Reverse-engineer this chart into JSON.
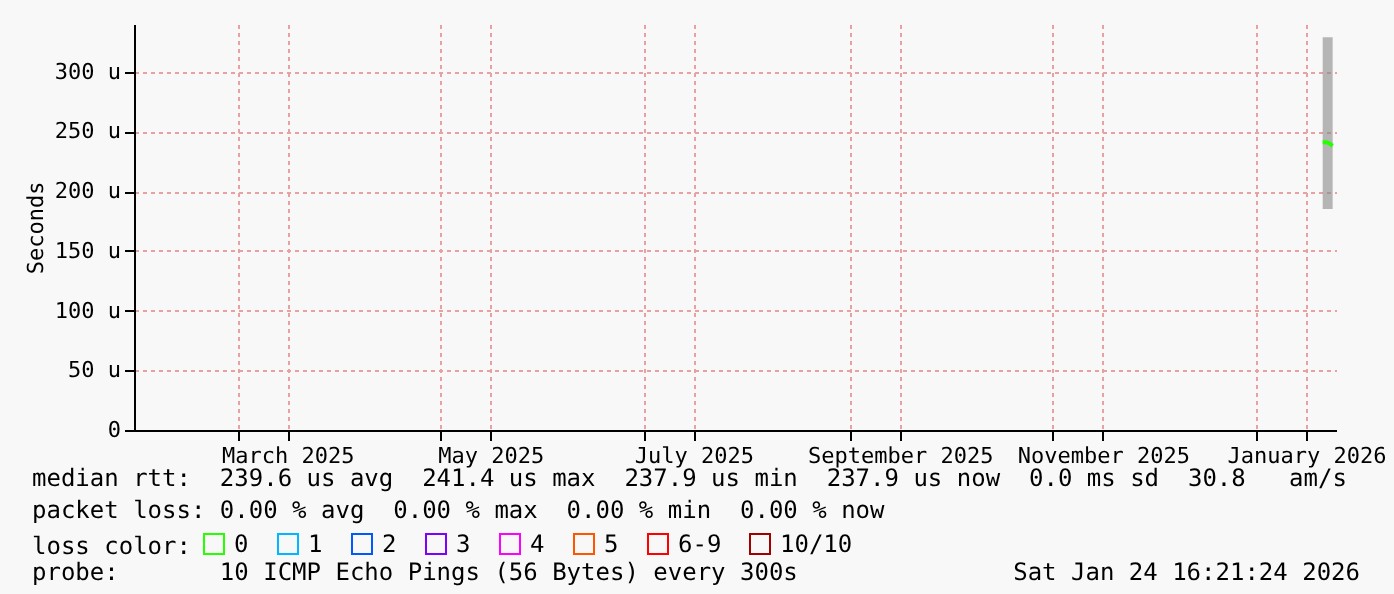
{
  "chart_data": {
    "type": "line",
    "ylabel": "Seconds",
    "xlim": [
      "2025-01-29",
      "2026-01-25"
    ],
    "xticks": [
      {
        "value": "2025-03-01",
        "label": null
      },
      {
        "value": "2025-03-16",
        "label": "March 2025"
      },
      {
        "value": "2025-05-01",
        "label": null
      },
      {
        "value": "2025-05-16",
        "label": "May 2025"
      },
      {
        "value": "2025-07-01",
        "label": null
      },
      {
        "value": "2025-07-16",
        "label": "July 2025"
      },
      {
        "value": "2025-09-01",
        "label": null
      },
      {
        "value": "2025-09-16",
        "label": "September 2025"
      },
      {
        "value": "2025-11-01",
        "label": null
      },
      {
        "value": "2025-11-16",
        "label": "November 2025"
      },
      {
        "value": "2026-01-01",
        "label": null
      },
      {
        "value": "2026-01-16",
        "label": "January 2026"
      }
    ],
    "ylim": [
      0,
      340
    ],
    "yticks": [
      0,
      {
        "value": 50,
        "label": "50 u"
      },
      {
        "value": 100,
        "label": "100 u"
      },
      {
        "value": 150,
        "label": "150 u"
      },
      {
        "value": 200,
        "label": "200 u"
      },
      {
        "value": 250,
        "label": "250 u"
      },
      {
        "value": 300,
        "label": "300 u"
      }
    ],
    "grid": true,
    "legend": "bottom",
    "legend_title": "loss color:",
    "marker": "none",
    "series": [
      {
        "name": "0",
        "color": "#26ff00",
        "x": [
          "2026-01-21",
          "2026-01-22",
          "2026-01-23",
          "2026-01-24"
        ],
        "values": [
          241,
          241,
          240,
          238
        ],
        "lower": [
          185,
          185,
          185,
          185
        ],
        "upper": [
          329,
          329,
          329,
          329
        ]
      },
      {
        "name": "1",
        "color": "#00b8ff"
      },
      {
        "name": "2",
        "color": "#0059ff"
      },
      {
        "name": "3",
        "color": "#7e00ff"
      },
      {
        "name": "4",
        "color": "#ff00ff"
      },
      {
        "name": "5",
        "color": "#ff5500"
      },
      {
        "name": "6-9",
        "color": "#ff0000"
      },
      {
        "name": "10/10",
        "color": "#a10000"
      }
    ],
    "annotations": [
      "median rtt:  239.6 us avg  241.4 us max  237.9 us min  237.9 us now  0.0 ms sd  30.8   am/s",
      "packet loss: 0.00 % avg  0.00 % max  0.00 % min  0.00 % now",
      "probe:       10 ICMP Echo Pings (56 Bytes) every 300s",
      "Sat Jan 24 16:21:24 2026"
    ]
  }
}
